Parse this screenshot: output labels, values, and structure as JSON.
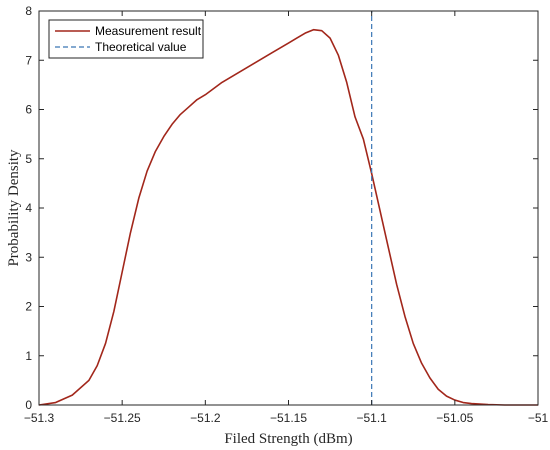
{
  "chart_data": {
    "type": "line",
    "xlabel": "Filed Strength (dBm)",
    "ylabel": "Probability Density",
    "xlim": [
      -51.3,
      -51.0
    ],
    "ylim": [
      0,
      8
    ],
    "xticks": [
      -51.3,
      -51.25,
      -51.2,
      -51.15,
      -51.1,
      -51.05,
      -51
    ],
    "xtick_labels": [
      "−51.3",
      "−51.25",
      "−51.2",
      "−51.15",
      "−51.1",
      "−51.05",
      "−51"
    ],
    "yticks": [
      0,
      1,
      2,
      3,
      4,
      5,
      6,
      7,
      8
    ],
    "ytick_labels": [
      "0",
      "1",
      "2",
      "3",
      "4",
      "5",
      "6",
      "7",
      "8"
    ],
    "grid": false,
    "legend_position": "top-left",
    "series": [
      {
        "name": "Measurement result",
        "style": "solid",
        "color": "#a2271b",
        "x": [
          -51.3,
          -51.29,
          -51.28,
          -51.27,
          -51.265,
          -51.26,
          -51.255,
          -51.25,
          -51.245,
          -51.24,
          -51.235,
          -51.23,
          -51.225,
          -51.22,
          -51.215,
          -51.21,
          -51.205,
          -51.2,
          -51.19,
          -51.18,
          -51.17,
          -51.16,
          -51.15,
          -51.145,
          -51.14,
          -51.135,
          -51.13,
          -51.125,
          -51.12,
          -51.115,
          -51.11,
          -51.105,
          -51.1,
          -51.095,
          -51.09,
          -51.085,
          -51.08,
          -51.075,
          -51.07,
          -51.065,
          -51.06,
          -51.055,
          -51.05,
          -51.045,
          -51.04,
          -51.035,
          -51.03,
          -51.02,
          -51.01,
          -51.0
        ],
        "y": [
          0.0,
          0.05,
          0.2,
          0.5,
          0.8,
          1.25,
          1.9,
          2.7,
          3.5,
          4.2,
          4.75,
          5.15,
          5.45,
          5.7,
          5.9,
          6.05,
          6.2,
          6.3,
          6.55,
          6.75,
          6.95,
          7.15,
          7.35,
          7.45,
          7.55,
          7.62,
          7.6,
          7.45,
          7.1,
          6.55,
          5.85,
          5.4,
          4.7,
          3.95,
          3.2,
          2.45,
          1.8,
          1.25,
          0.85,
          0.55,
          0.32,
          0.18,
          0.1,
          0.05,
          0.03,
          0.02,
          0.01,
          0.0,
          0.0,
          0.0
        ]
      },
      {
        "name": "Theoretical value",
        "style": "dashed",
        "color": "#3a76b5",
        "x": [
          -51.1,
          -51.1
        ],
        "y": [
          0,
          8
        ]
      }
    ]
  }
}
